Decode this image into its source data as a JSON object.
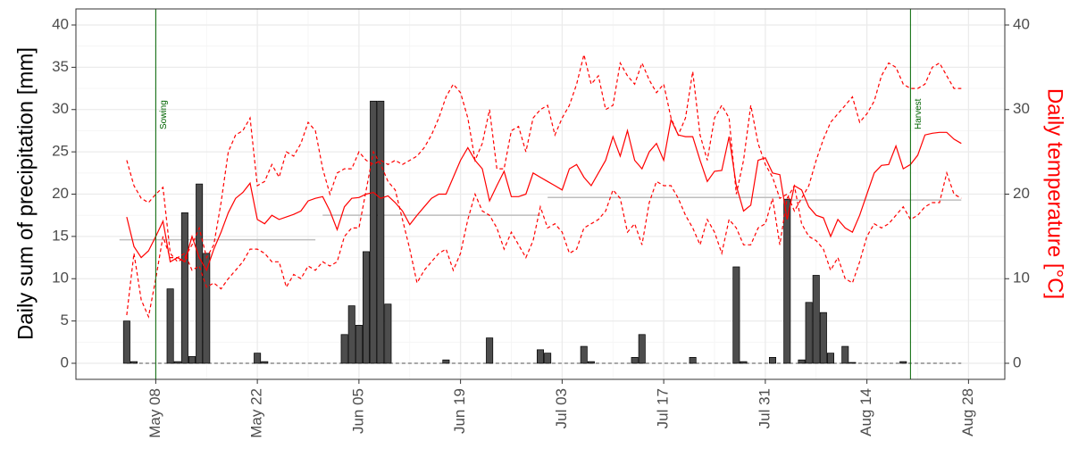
{
  "chart_data": {
    "type": "bar_line",
    "ylabel": "Daily sum of precipitation [mm]",
    "y2label": "Daily temperature [°C]",
    "xlim": [
      "04-27",
      "09-02"
    ],
    "xticks": [
      {
        "value": "05-08",
        "label": "May 08"
      },
      {
        "value": "05-22",
        "label": "May 22"
      },
      {
        "value": "06-05",
        "label": "Jun 05"
      },
      {
        "value": "06-19",
        "label": "Jun 19"
      },
      {
        "value": "07-03",
        "label": "Jul 03"
      },
      {
        "value": "07-17",
        "label": "Jul 17"
      },
      {
        "value": "07-31",
        "label": "Jul 31"
      },
      {
        "value": "08-14",
        "label": "Aug 14"
      },
      {
        "value": "08-28",
        "label": "Aug 28"
      }
    ],
    "ylim": [
      -1.9,
      41.9
    ],
    "yticks": [
      0,
      5,
      10,
      15,
      20,
      25,
      30,
      35,
      40
    ],
    "y2lim": [
      -1.9,
      41.9
    ],
    "y2ticks": [
      0,
      10,
      20,
      30,
      40
    ],
    "grid": true,
    "x": [
      "05-04",
      "05-05",
      "05-06",
      "05-07",
      "05-08",
      "05-09",
      "05-10",
      "05-11",
      "05-12",
      "05-13",
      "05-14",
      "05-15",
      "05-16",
      "05-17",
      "05-18",
      "05-19",
      "05-20",
      "05-21",
      "05-22",
      "05-23",
      "05-24",
      "05-25",
      "05-26",
      "05-27",
      "05-28",
      "05-29",
      "05-30",
      "05-31",
      "06-01",
      "06-02",
      "06-03",
      "06-04",
      "06-05",
      "06-06",
      "06-07",
      "06-08",
      "06-09",
      "06-10",
      "06-11",
      "06-12",
      "06-13",
      "06-14",
      "06-15",
      "06-16",
      "06-17",
      "06-18",
      "06-19",
      "06-20",
      "06-21",
      "06-22",
      "06-23",
      "06-24",
      "06-25",
      "06-26",
      "06-27",
      "06-28",
      "06-29",
      "06-30",
      "07-01",
      "07-02",
      "07-03",
      "07-04",
      "07-05",
      "07-06",
      "07-07",
      "07-08",
      "07-09",
      "07-10",
      "07-11",
      "07-12",
      "07-13",
      "07-14",
      "07-15",
      "07-16",
      "07-17",
      "07-18",
      "07-19",
      "07-20",
      "07-21",
      "07-22",
      "07-23",
      "07-24",
      "07-25",
      "07-26",
      "07-27",
      "07-28",
      "07-29",
      "07-30",
      "07-31",
      "08-01",
      "08-02",
      "08-03",
      "08-04",
      "08-05",
      "08-06",
      "08-07",
      "08-08",
      "08-09",
      "08-10",
      "08-11",
      "08-12",
      "08-13",
      "08-14",
      "08-15",
      "08-16",
      "08-17",
      "08-18",
      "08-19",
      "08-20",
      "08-21",
      "08-22",
      "08-23",
      "08-24",
      "08-25",
      "08-26",
      "08-27"
    ],
    "series": [
      {
        "kind": "bar",
        "color": "#4d4d4d",
        "values": [
          5.0,
          0.2,
          0,
          0,
          0,
          0,
          8.8,
          0.2,
          17.8,
          0.8,
          21.2,
          13.0,
          0,
          0,
          0,
          0,
          0,
          0,
          1.2,
          0.2,
          0,
          0,
          0,
          0,
          0,
          0,
          0,
          0,
          0,
          0,
          3.4,
          6.8,
          4.5,
          13.2,
          31,
          31,
          7.0,
          0,
          0,
          0,
          0,
          0,
          0,
          0,
          0.4,
          0,
          0,
          0,
          0,
          0,
          3.0,
          0,
          0,
          0,
          0,
          0,
          0,
          1.6,
          1.2,
          0,
          0,
          0,
          0,
          2.0,
          0.2,
          0,
          0,
          0,
          0,
          0,
          0.7,
          3.4,
          0,
          0,
          0,
          0,
          0,
          0,
          0.7,
          0,
          0,
          0,
          0,
          0,
          11.4,
          0.2,
          0,
          0,
          0,
          0.7,
          0,
          19.4,
          0,
          0.4,
          7.2,
          10.4,
          6.0,
          1.2,
          0,
          2.0,
          0.1,
          0,
          0,
          0,
          0,
          0,
          0,
          0.2,
          0,
          0,
          0,
          0,
          0,
          0,
          0,
          0
        ]
      },
      {
        "kind": "line",
        "axis": "y2",
        "color": "#ff0000",
        "dashed": false,
        "values": [
          17.3,
          13.8,
          12.5,
          13.3,
          15.0,
          16.8,
          12.0,
          12.5,
          12.0,
          15.0,
          12.5,
          11.0,
          13.5,
          15.5,
          17.8,
          19.5,
          20.2,
          21.3,
          17.0,
          16.5,
          17.5,
          17.0,
          17.3,
          17.6,
          18.0,
          19.2,
          19.5,
          19.7,
          18.0,
          15.8,
          18.5,
          19.5,
          19.6,
          20.0,
          20.2,
          19.5,
          19.8,
          19.0,
          18.0,
          16.4,
          17.5,
          18.5,
          19.5,
          20.0,
          20.0,
          22.0,
          24.0,
          25.5,
          24.0,
          23.0,
          19.2,
          21.0,
          22.7,
          19.7,
          19.7,
          20.0,
          22.5,
          22.0,
          21.5,
          21.0,
          20.5,
          23.0,
          23.5,
          22.0,
          21.0,
          22.5,
          24.0,
          26.8,
          24.5,
          27.5,
          24.0,
          23.0,
          25.0,
          26.0,
          24.0,
          28.8,
          27.0,
          26.8,
          26.8,
          24.0,
          21.5,
          22.7,
          22.8,
          26.8,
          21.0,
          18.0,
          18.7,
          24.0,
          24.3,
          22.5,
          22.3,
          17.0,
          21.0,
          20.5,
          18.5,
          17.5,
          17.2,
          15.0,
          17.0,
          16.0,
          15.5,
          17.5,
          20.0,
          22.5,
          23.4,
          23.5,
          25.7,
          23.0,
          23.5,
          24.6,
          27.0,
          27.2,
          27.3,
          27.3,
          26.5,
          26.0
        ]
      },
      {
        "kind": "line",
        "axis": "y2",
        "color": "#ff0000",
        "dashed": true,
        "values": [
          24,
          21,
          19.5,
          19,
          20,
          20.8,
          13,
          12,
          12.5,
          14,
          16,
          12.5,
          14,
          19,
          25,
          27,
          27.5,
          29,
          21,
          21.5,
          23.5,
          22,
          25,
          24.5,
          26,
          28.5,
          27.5,
          23,
          20,
          22.5,
          23,
          23,
          25,
          24,
          23.5,
          24,
          23.5,
          24,
          23.5,
          24,
          24.5,
          25.5,
          27,
          29,
          31.5,
          33,
          32,
          29,
          24,
          26,
          30,
          23,
          23,
          27.5,
          28,
          25,
          29,
          30,
          30.5,
          27,
          29,
          30.5,
          33,
          36.5,
          33,
          34,
          30,
          30.5,
          35.5,
          34,
          33,
          35.5,
          33.5,
          32,
          33,
          29,
          27,
          29,
          34.5,
          27,
          24,
          29,
          30.5,
          29,
          20,
          24,
          30.5,
          26,
          23.5,
          22,
          19.5,
          20,
          18,
          19.5,
          21,
          24,
          26.5,
          28.5,
          29.5,
          30.5,
          31.5,
          28.5,
          29.5,
          31,
          34,
          35.5,
          35,
          33,
          32.5,
          32.5,
          33,
          35,
          35.5,
          34,
          32.5,
          32.5
        ]
      },
      {
        "kind": "line",
        "axis": "y2",
        "color": "#ff0000",
        "dashed": true,
        "values": [
          5.7,
          13,
          7.5,
          5.5,
          10,
          15,
          12.5,
          12.5,
          13,
          11,
          11.5,
          9,
          9.5,
          8.8,
          10,
          11,
          12,
          13.5,
          13.5,
          13,
          12,
          12,
          9,
          10.5,
          10,
          11.5,
          11,
          12,
          11.5,
          12,
          15,
          16,
          16,
          20.5,
          25,
          23.5,
          21.5,
          20.5,
          17,
          13.5,
          9.5,
          11,
          12,
          13,
          13.5,
          11,
          13,
          17,
          20,
          18,
          17.5,
          16,
          13.5,
          15.5,
          14,
          12.5,
          14.5,
          18.5,
          16,
          16.5,
          15.5,
          13,
          13.5,
          16,
          16.5,
          17,
          18,
          20.5,
          19.5,
          15.5,
          16.5,
          14,
          19,
          21.5,
          21,
          21,
          19.5,
          17.5,
          16,
          14,
          17,
          15.5,
          13,
          17,
          16,
          14,
          14,
          16,
          16.5,
          19.5,
          14,
          19.5,
          21,
          16.5,
          15,
          14.5,
          13.5,
          11,
          12.5,
          10,
          9.5,
          12,
          15,
          16.5,
          16,
          16.5,
          17.5,
          18.5,
          17,
          17.5,
          18.5,
          19,
          19,
          22.5,
          20,
          19.5
        ]
      }
    ],
    "segments": {
      "axis": "y2",
      "color": "#bebebe",
      "items": [
        {
          "start": "05-03",
          "end": "05-30",
          "value": 14.6
        },
        {
          "start": "05-31",
          "end": "06-30",
          "value": 17.5
        },
        {
          "start": "07-01",
          "end": "08-02",
          "value": 19.6
        },
        {
          "start": "08-03",
          "end": "08-27",
          "value": 19.3
        }
      ]
    },
    "annotations": {
      "color": "#006400",
      "items": [
        {
          "text": "Sowing",
          "x": "05-08"
        },
        {
          "text": "Harvest",
          "x": "08-20"
        }
      ]
    }
  }
}
